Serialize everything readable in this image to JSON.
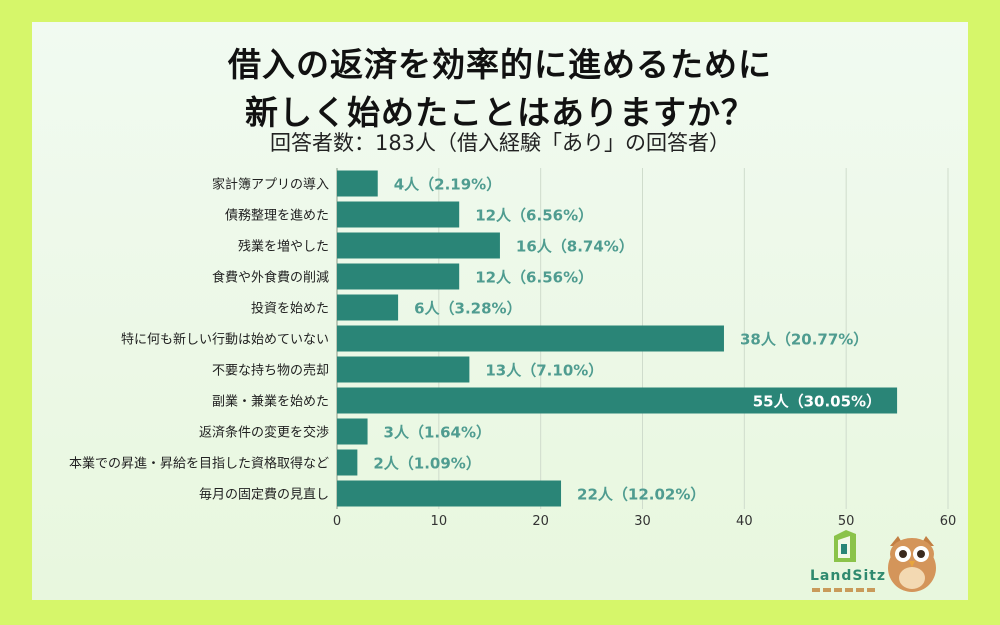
{
  "title_line1": "借入の返済を効率的に進めるために",
  "title_line2": "新しく始めたことはありますか？",
  "subtitle": "回答者数：183人（借入経験「あり」の回答者）",
  "logo_text": "LandSitz",
  "colors": {
    "bar": "#2a8577",
    "label_outside": "#4f9c90",
    "label_inside": "#ffffff",
    "background": "#d6f66a"
  },
  "chart_data": {
    "type": "bar",
    "orientation": "horizontal",
    "categories": [
      "家計簿アプリの導入",
      "債務整理を進めた",
      "残業を増やした",
      "食費や外食費の削減",
      "投資を始めた",
      "特に何も新しい行動は始めていない",
      "不要な持ち物の売却",
      "副業・兼業を始めた",
      "返済条件の変更を交渉",
      "本業での昇進・昇給を目指した資格取得など",
      "毎月の固定費の見直し"
    ],
    "values": [
      4,
      12,
      16,
      12,
      6,
      38,
      13,
      55,
      3,
      2,
      22
    ],
    "data_labels": [
      "4人（2.19%）",
      "12人（6.56%）",
      "16人（8.74%）",
      "12人（6.56%）",
      "6人（3.28%）",
      "38人（20.77%）",
      "13人（7.10%）",
      "55人（30.05%）",
      "3人（1.64%）",
      "2人（1.09%）",
      "22人（12.02%）"
    ],
    "xlim": [
      0,
      60
    ],
    "xticks": [
      "0",
      "10",
      "20",
      "30",
      "40",
      "50",
      "60"
    ],
    "grid": true
  }
}
